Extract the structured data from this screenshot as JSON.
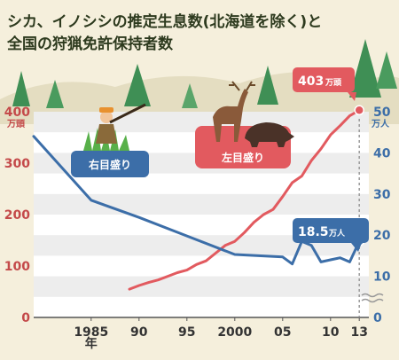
{
  "title": {
    "line1": "シカ、イノシシの推定生息数(北海道を除く)と",
    "line2": "全国の狩猟免許保持者数"
  },
  "colors": {
    "background": "#f5efdc",
    "wildlife": "#e25a5f",
    "hunters": "#3c6ea8",
    "tree": "#3f8f55"
  },
  "labels": {
    "left_unit": "万頭",
    "right_unit": "万人",
    "year_suffix": "年",
    "hunters_badge": "右目盛り",
    "wildlife_badge": "左目盛り",
    "wildlife_callout_value": "403",
    "wildlife_callout_unit": "万頭",
    "hunters_callout_value": "18.5",
    "hunters_callout_unit": "万人"
  },
  "icons": {
    "hunter": "hunter-illustration",
    "deer": "deer-illustration",
    "boar": "boar-illustration"
  },
  "chart_data": {
    "type": "line",
    "x_tick_labels": [
      "1985",
      "90",
      "95",
      "2000",
      "05",
      "10",
      "13"
    ],
    "x_tick_years": [
      1985,
      1990,
      1995,
      2000,
      2005,
      2010,
      2013
    ],
    "xlim": [
      1979,
      2014
    ],
    "y_left": {
      "ticks": [
        0,
        100,
        200,
        300,
        400
      ],
      "ylim": [
        0,
        400
      ],
      "unit": "万頭"
    },
    "y_right": {
      "ticks": [
        0,
        10,
        20,
        30,
        40,
        50
      ],
      "ylim": [
        0,
        50
      ],
      "unit": "万人"
    },
    "grid": true,
    "series": [
      {
        "name": "シカ、イノシシの推定生息数",
        "axis": "left",
        "years": [
          1989,
          1990,
          1991,
          1992,
          1993,
          1994,
          1995,
          1996,
          1997,
          1998,
          1999,
          2000,
          2001,
          2002,
          2003,
          2004,
          2005,
          2006,
          2007,
          2008,
          2009,
          2010,
          2011,
          2012,
          2013
        ],
        "values": [
          55,
          62,
          68,
          73,
          80,
          87,
          92,
          103,
          110,
          125,
          140,
          148,
          165,
          185,
          200,
          210,
          235,
          262,
          275,
          305,
          328,
          355,
          373,
          392,
          403
        ]
      },
      {
        "name": "全国の狩猟免許保持者数",
        "axis": "right",
        "years": [
          1979,
          1985,
          1990,
          1995,
          2000,
          2005,
          2006,
          2007,
          2008,
          2009,
          2010,
          2011,
          2012,
          2013
        ],
        "values": [
          44,
          28.5,
          24.3,
          19.8,
          15.3,
          14.7,
          13,
          18.5,
          17.5,
          13.5,
          14,
          14.5,
          13.5,
          18.5
        ]
      }
    ]
  }
}
